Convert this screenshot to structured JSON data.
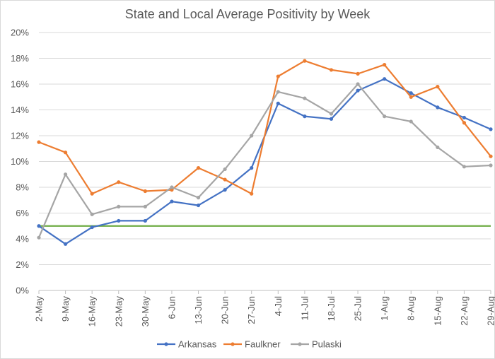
{
  "chart_data": {
    "type": "line",
    "title": "State and Local Average Positivity by Week",
    "xlabel": "",
    "ylabel": "",
    "ylim": [
      0,
      20
    ],
    "y_ticks": [
      "0%",
      "2%",
      "4%",
      "6%",
      "8%",
      "10%",
      "12%",
      "14%",
      "16%",
      "18%",
      "20%"
    ],
    "categories": [
      "2-May",
      "9-May",
      "16-May",
      "23-May",
      "30-May",
      "6-Jun",
      "13-Jun",
      "20-Jun",
      "27-Jun",
      "4-Jul",
      "11-Jul",
      "18-Jul",
      "25-Jul",
      "1-Aug",
      "8-Aug",
      "15-Aug",
      "22-Aug",
      "29-Aug"
    ],
    "grid": true,
    "legend_position": "bottom",
    "series": [
      {
        "name": "Arkansas",
        "color": "#4472c4",
        "values": [
          5.0,
          3.6,
          4.9,
          5.4,
          5.4,
          6.9,
          6.6,
          7.8,
          9.5,
          14.5,
          13.5,
          13.3,
          15.5,
          16.4,
          15.3,
          14.2,
          13.4,
          12.5
        ]
      },
      {
        "name": "Faulkner",
        "color": "#ed7d31",
        "values": [
          11.5,
          10.7,
          7.5,
          8.4,
          7.7,
          7.8,
          9.5,
          8.6,
          7.5,
          16.6,
          17.8,
          17.1,
          16.8,
          17.5,
          15.0,
          15.8,
          13.0,
          10.4
        ]
      },
      {
        "name": "Pulaski",
        "color": "#a5a5a5",
        "values": [
          4.1,
          9.0,
          5.9,
          6.5,
          6.5,
          8.0,
          7.2,
          9.4,
          12.0,
          15.4,
          14.9,
          13.7,
          16.0,
          13.5,
          13.1,
          11.1,
          9.6,
          9.7
        ]
      }
    ],
    "reference_line": {
      "value": 5.0,
      "color": "#70ad47"
    }
  }
}
